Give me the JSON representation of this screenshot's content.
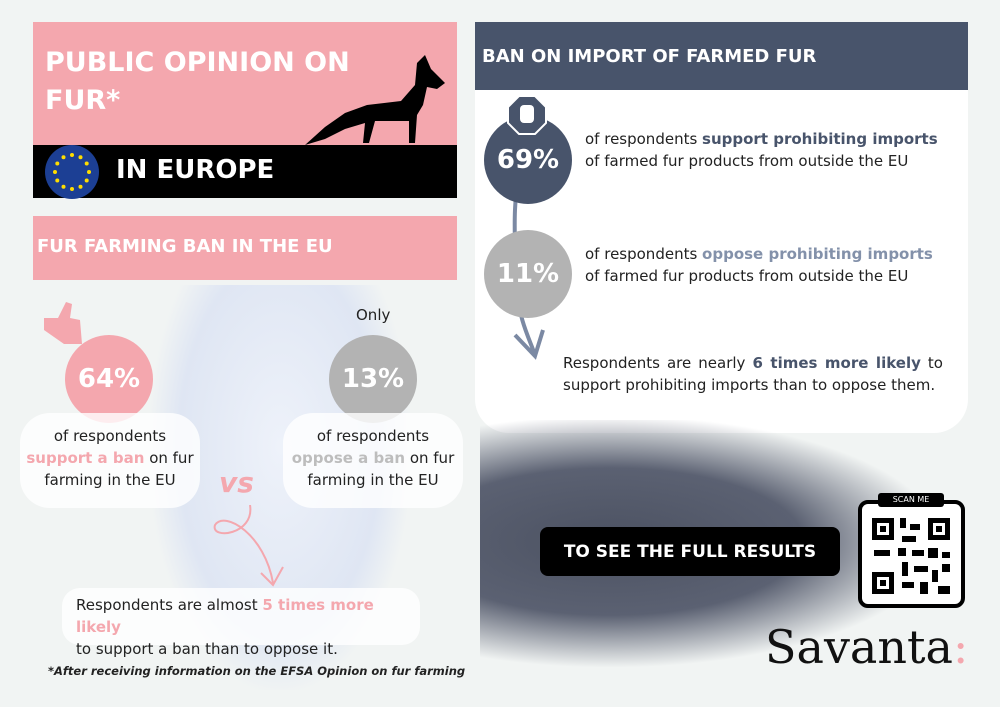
{
  "title": {
    "line1": "PUBLIC OPINION ON FUR*",
    "region": "IN EUROPE"
  },
  "left": {
    "heading": "FUR FARMING BAN IN THE EU",
    "support": {
      "percent": "64%",
      "pre": "of respondents",
      "highlight": "support a ban",
      "post": "on fur farming in the EU"
    },
    "oppose": {
      "label_above": "Only",
      "percent": "13%",
      "pre": "of respondents",
      "highlight": "oppose a ban",
      "post": "on fur farming in the EU"
    },
    "vs": "VS",
    "summary": {
      "pre": "Respondents are almost",
      "highlight": "5 times more likely",
      "post": "to support a ban than to oppose it."
    },
    "footnote": "*After receiving information on the EFSA Opinion on fur farming"
  },
  "right": {
    "heading": "BAN ON IMPORT OF FARMED FUR",
    "support": {
      "percent": "69%",
      "pre": "of respondents",
      "highlight": "support prohibiting imports",
      "post": "of farmed fur products from outside the EU"
    },
    "oppose": {
      "percent": "11%",
      "pre": "of respondents",
      "highlight": "oppose prohibiting imports",
      "post": "of farmed fur products from outside the EU"
    },
    "summary": {
      "pre": "Respondents are nearly",
      "highlight": "6 times more likely",
      "post": "to support prohibiting imports than to oppose them."
    }
  },
  "cta": {
    "label": "TO SEE THE FULL RESULTS",
    "scan": "SCAN ME"
  },
  "logo": {
    "text": "Savanta",
    "colon": ":"
  },
  "colors": {
    "pink": "#f4a7ae",
    "navy": "#48546b",
    "grey": "#b3b3b3",
    "background": "#f1f4f3"
  }
}
